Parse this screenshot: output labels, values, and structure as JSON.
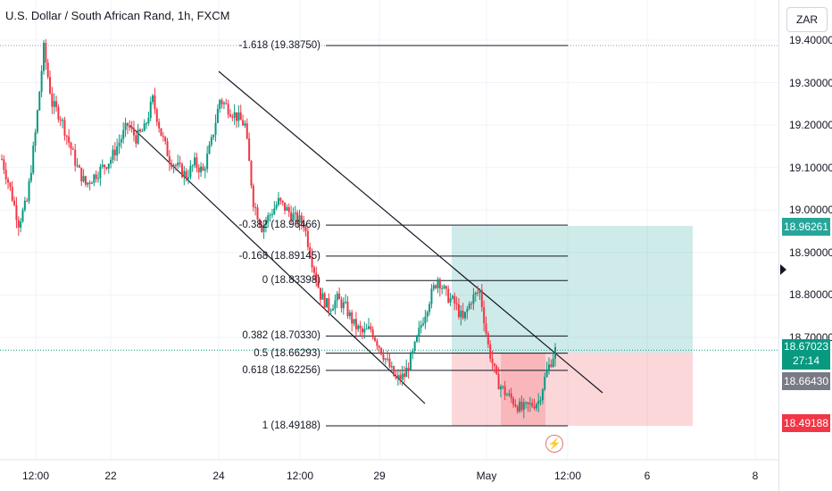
{
  "header": {
    "title": "U.S. Dollar / South African Rand, 1h, FXCM"
  },
  "currency_button": "ZAR",
  "price_labels": {
    "target": {
      "value": "18.96261",
      "color": "#26a69a"
    },
    "current": {
      "value": "18.67023",
      "countdown": "27:14",
      "color": "#089981"
    },
    "entry": {
      "value": "18.66430",
      "color": "#787b86"
    },
    "stop": {
      "value": "18.49188",
      "color": "#f23645"
    }
  },
  "colors": {
    "up": "#089981",
    "down": "#f23645",
    "profit_zone": "#26a69a",
    "loss_zone": "#f23645"
  },
  "icons": {
    "scroll": "right-arrow-icon",
    "event": "lightning-icon"
  },
  "chart_data": {
    "type": "candlestick",
    "symbol": "USDZAR",
    "timeframe": "1h",
    "y_ticks": [
      "19.40000",
      "19.30000",
      "19.20000",
      "19.10000",
      "19.00000",
      "18.90000",
      "18.80000",
      "18.70000"
    ],
    "x_ticks": [
      "12:00",
      "22",
      "24",
      "12:00",
      "29",
      "May",
      "12:00",
      "6",
      "8"
    ],
    "ylim": [
      18.45,
      19.43
    ],
    "fib_levels": [
      {
        "ratio": "-1.618",
        "price": 19.3875,
        "label": "-1.618 (19.38750)"
      },
      {
        "ratio": "-0.382",
        "price": 18.96466,
        "label": "-0.382 (18.96466)"
      },
      {
        "ratio": "-0.168",
        "price": 18.89145,
        "label": "-0.168 (18.89145)"
      },
      {
        "ratio": "0",
        "price": 18.83398,
        "label": "0 (18.83398)"
      },
      {
        "ratio": "0.382",
        "price": 18.7033,
        "label": "0.382 (18.70330)"
      },
      {
        "ratio": "0.5",
        "price": 18.66293,
        "label": "0.5 (18.66293)"
      },
      {
        "ratio": "0.618",
        "price": 18.62256,
        "label": "0.618 (18.62256)"
      },
      {
        "ratio": "1",
        "price": 18.49188,
        "label": "1 (18.49188)"
      }
    ],
    "position": {
      "entry": 18.6643,
      "target": 18.96261,
      "stop": 18.49188
    },
    "price_path": [
      19.12,
      19.05,
      18.97,
      19.02,
      19.18,
      19.38,
      19.25,
      19.22,
      19.16,
      19.1,
      19.06,
      19.08,
      19.1,
      19.12,
      19.16,
      19.2,
      19.17,
      19.19,
      19.26,
      19.18,
      19.12,
      19.1,
      19.08,
      19.11,
      19.09,
      19.16,
      19.26,
      19.24,
      19.22,
      19.2,
      19.02,
      18.96,
      18.99,
      19.02,
      19.0,
      18.98,
      18.97,
      18.88,
      18.8,
      18.77,
      18.79,
      18.77,
      18.73,
      18.71,
      18.72,
      18.68,
      18.64,
      18.6,
      18.61,
      18.66,
      18.73,
      18.79,
      18.84,
      18.8,
      18.78,
      18.74,
      18.79,
      18.81,
      18.68,
      18.6,
      18.57,
      18.55,
      18.53,
      18.54,
      18.55,
      18.62,
      18.67
    ]
  }
}
